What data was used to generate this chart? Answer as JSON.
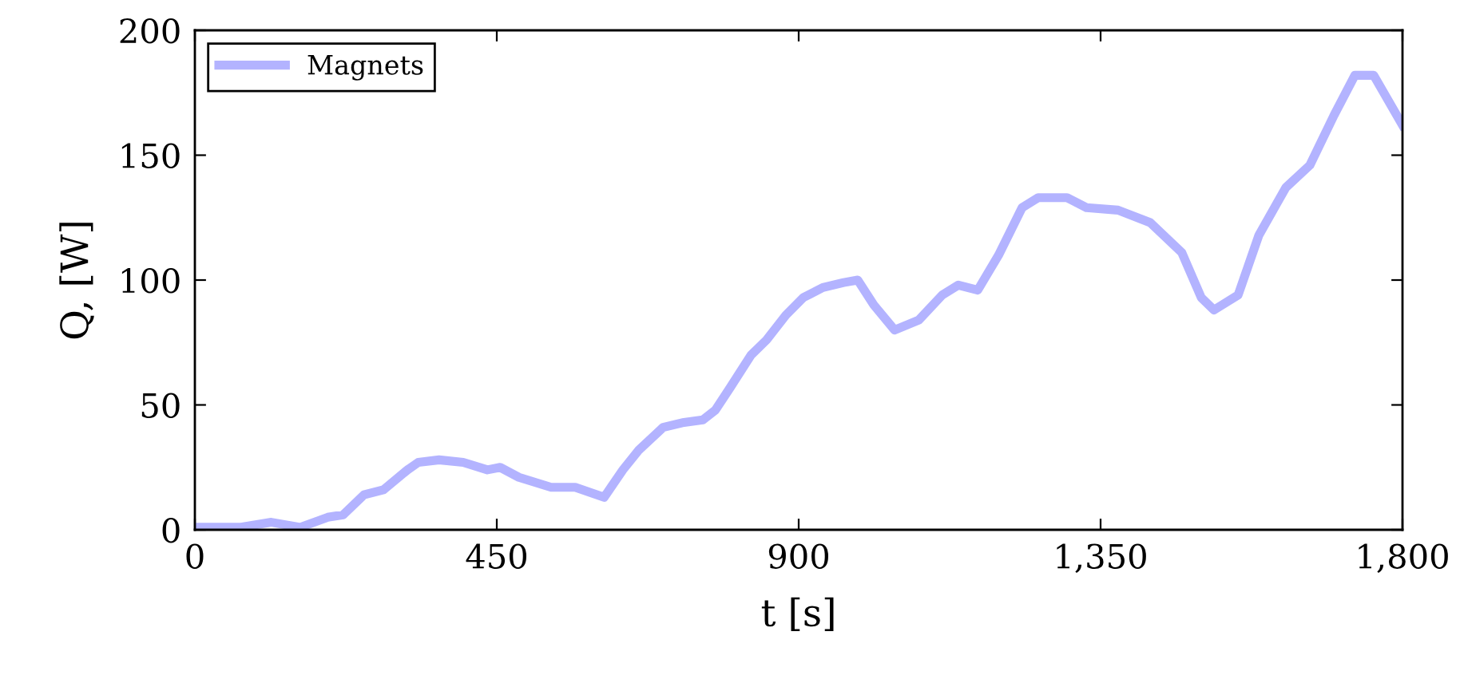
{
  "chart_data": {
    "type": "line",
    "xlabel": "t [s]",
    "ylabel": "Q, [W]",
    "xlim": [
      0,
      1800
    ],
    "ylim": [
      0,
      200
    ],
    "xticks": [
      0,
      450,
      900,
      {
        "value": 1350,
        "label": "1,350"
      },
      {
        "value": 1800,
        "label": "1,800"
      }
    ],
    "yticks": [
      0,
      50,
      100,
      150,
      200
    ],
    "grid": false,
    "legend": "top left",
    "marker": "none",
    "line_style": "solid",
    "series": [
      {
        "name": "Magnets",
        "color": "#b3b3ff",
        "x": [
          0,
          67,
          114,
          157,
          198,
          221,
          252,
          281,
          317,
          333,
          364,
          400,
          436,
          455,
          483,
          531,
          567,
          610,
          638,
          662,
          698,
          729,
          757,
          776,
          798,
          829,
          852,
          881,
          907,
          936,
          967,
          988,
          1012,
          1043,
          1079,
          1114,
          1138,
          1167,
          1198,
          1233,
          1257,
          1300,
          1329,
          1376,
          1424,
          1471,
          1500,
          1519,
          1555,
          1586,
          1626,
          1662,
          1698,
          1729,
          1757,
          1800
        ],
        "values": [
          1,
          1,
          3,
          1,
          5,
          6,
          14,
          16,
          24,
          27,
          28,
          27,
          24,
          25,
          21,
          17,
          17,
          13,
          24,
          32,
          41,
          43,
          44,
          48,
          57,
          70,
          76,
          86,
          93,
          97,
          99,
          100,
          90,
          80,
          84,
          94,
          98,
          96,
          110,
          129,
          133,
          133,
          129,
          128,
          123,
          111,
          93,
          88,
          94,
          118,
          137,
          146,
          166,
          182,
          182,
          162
        ]
      }
    ]
  }
}
